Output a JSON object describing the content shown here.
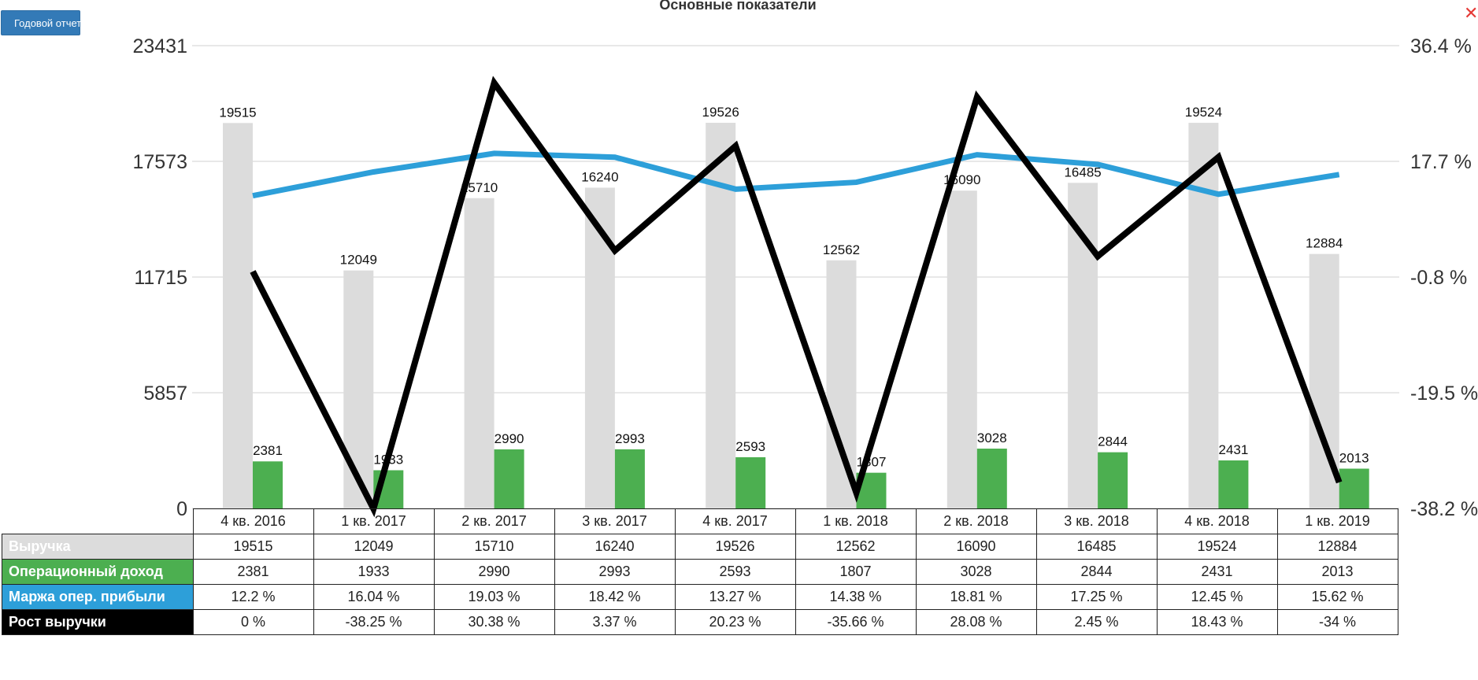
{
  "toolbar": {
    "report_button_label": "Годовой отчет"
  },
  "title": "Основные показатели",
  "close_icon": "close-icon",
  "colors": {
    "revenue": "#dcdcdc",
    "operating_income": "#4caf50",
    "margin": "#2d9fd9",
    "growth": "#000000",
    "button": "#337ab7",
    "close": "#e53935"
  },
  "chart_data": {
    "type": "bar",
    "categories": [
      "4 кв. 2016",
      "1 кв. 2017",
      "2 кв. 2017",
      "3 кв. 2017",
      "4 кв. 2017",
      "1 кв. 2018",
      "2 кв. 2018",
      "3 кв. 2018",
      "4 кв. 2018",
      "1 кв. 2019"
    ],
    "left_axis": {
      "ticks": [
        "0",
        "5857",
        "11715",
        "17573",
        "23431"
      ],
      "min": 0,
      "max": 23431
    },
    "right_axis": {
      "ticks": [
        "-38.2 %",
        "-19.5 %",
        "-0.8 %",
        "17.7 %",
        "36.4 %"
      ],
      "min": -38.2,
      "max": 36.4
    },
    "grid": true,
    "series": [
      {
        "name": "Выручка",
        "kind": "bar",
        "axis": "left",
        "values": [
          19515,
          12049,
          15710,
          16240,
          19526,
          12562,
          16090,
          16485,
          19524,
          12884
        ]
      },
      {
        "name": "Операционный доход",
        "kind": "bar",
        "axis": "left",
        "values": [
          2381,
          1933,
          2990,
          2993,
          2593,
          1807,
          3028,
          2844,
          2431,
          2013
        ]
      },
      {
        "name": "Маржа опер. прибыли",
        "kind": "line",
        "axis": "right",
        "values": [
          12.2,
          16.04,
          19.03,
          18.42,
          13.27,
          14.38,
          18.81,
          17.25,
          12.45,
          15.62
        ]
      },
      {
        "name": "Рост выручки",
        "kind": "line",
        "axis": "right",
        "values": [
          0,
          -38.25,
          30.38,
          3.37,
          20.23,
          -35.66,
          28.08,
          2.45,
          18.43,
          -34
        ]
      }
    ]
  },
  "table": {
    "rows": [
      {
        "label": "Выручка",
        "cells": [
          "19515",
          "12049",
          "15710",
          "16240",
          "19526",
          "12562",
          "16090",
          "16485",
          "19524",
          "12884"
        ]
      },
      {
        "label": "Операционный доход",
        "cells": [
          "2381",
          "1933",
          "2990",
          "2993",
          "2593",
          "1807",
          "3028",
          "2844",
          "2431",
          "2013"
        ]
      },
      {
        "label": "Маржа опер. прибыли",
        "cells": [
          "12.2 %",
          "16.04 %",
          "19.03 %",
          "18.42 %",
          "13.27 %",
          "14.38 %",
          "18.81 %",
          "17.25 %",
          "12.45 %",
          "15.62 %"
        ]
      },
      {
        "label": "Рост выручки",
        "cells": [
          "0 %",
          "-38.25 %",
          "30.38 %",
          "3.37 %",
          "20.23 %",
          "-35.66 %",
          "28.08 %",
          "2.45 %",
          "18.43 %",
          "-34 %"
        ]
      }
    ]
  }
}
